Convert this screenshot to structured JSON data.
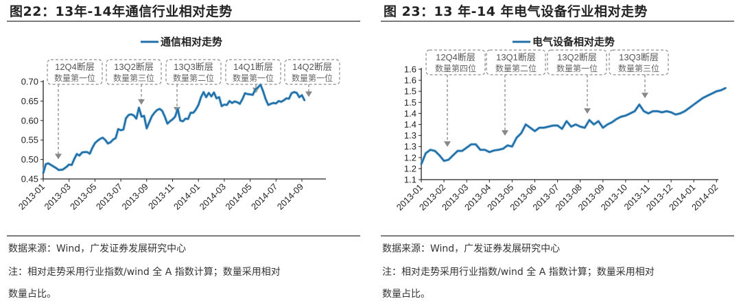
{
  "left": {
    "title": "图22：13年-14年通信行业相对走势",
    "source": "数据来源：Wind，广发证券发展研究中心",
    "note_line1": "注：相对走势采用行业指数/wind 全 A 指数计算；数量采用相对",
    "note_line2": "数量占比。"
  },
  "right": {
    "title": "图 23：13 年-14 年电气设备行业相对走势",
    "source": "数据来源：Wind，广发证券发展研究中心",
    "note_line1": "注：相对走势采用行业指数/wind 全 A 指数计算；数量采用相对",
    "note_line2": "数量占比。"
  },
  "colors": {
    "line": "#1f6fa8",
    "annotation": "#8a8a8a",
    "axis": "#222222"
  },
  "chart_data": [
    {
      "type": "line",
      "title": "图22：13年-14年通信行业相对走势",
      "legend": [
        "通信相对走势"
      ],
      "legend_position": "top",
      "xlabel": "",
      "ylabel": "",
      "ylim": [
        0.45,
        0.7
      ],
      "yticks": [
        "0.45",
        "0.50",
        "0.55",
        "0.60",
        "0.65",
        "0.70"
      ],
      "xticks": [
        "2013-01",
        "2013-03",
        "2013-05",
        "2013-07",
        "2013-09",
        "2013-11",
        "2014-01",
        "2014-03",
        "2014-05",
        "2014-07",
        "2014-09"
      ],
      "grid": false,
      "annotations": [
        {
          "line1": "12Q4断层",
          "line2": "数量第一位",
          "x": "2013-02",
          "y": 0.49
        },
        {
          "line1": "13Q2断层",
          "line2": "数量第三位",
          "x": "2013-08",
          "y": 0.63
        },
        {
          "line1": "13Q3断层",
          "line2": "数量第二位",
          "x": "2013-11",
          "y": 0.61
        },
        {
          "line1": "14Q1断层",
          "line2": "数量第一位",
          "x": "2014-05",
          "y": 0.66
        },
        {
          "line1": "14Q2断层",
          "line2": "数量第一位",
          "x": "2014-09",
          "y": 0.65
        }
      ],
      "series": [
        {
          "name": "通信相对走势",
          "x_month_offset": [
            0,
            0.2,
            0.4,
            0.7,
            1.0,
            1.2,
            1.5,
            1.8,
            2.0,
            2.2,
            2.4,
            2.6,
            2.8,
            3.0,
            3.2,
            3.4,
            3.6,
            3.8,
            4.0,
            4.2,
            4.4,
            4.6,
            4.8,
            5.0,
            5.2,
            5.4,
            5.6,
            5.8,
            6.0,
            6.2,
            6.4,
            6.6,
            6.8,
            7.0,
            7.2,
            7.4,
            7.6,
            7.8,
            8.0,
            8.2,
            8.4,
            8.6,
            8.8,
            9.0,
            9.2,
            9.4,
            9.6,
            9.8,
            10.0,
            10.2,
            10.4,
            10.6,
            10.8,
            11.0,
            11.2,
            11.4,
            11.6,
            11.8,
            12.0,
            12.2,
            12.4,
            12.6,
            12.8,
            13.0,
            13.2,
            13.4,
            13.6,
            13.8,
            14.0,
            14.2,
            14.4,
            14.6,
            14.8,
            15.0,
            15.2,
            15.4,
            15.6,
            15.8,
            16.0,
            16.2,
            16.4,
            16.6,
            16.8,
            17.0,
            17.2,
            17.4,
            17.6,
            17.8,
            18.0,
            18.2,
            18.4,
            18.6,
            18.8,
            19.0,
            19.2,
            19.4,
            19.6,
            19.8,
            20.0,
            20.2,
            20.4,
            20.6,
            20.8,
            21.0,
            21.2,
            21.4,
            21.6,
            21.8,
            22.0,
            22.2
          ],
          "values": [
            0.465,
            0.488,
            0.49,
            0.484,
            0.478,
            0.473,
            0.474,
            0.481,
            0.487,
            0.486,
            0.501,
            0.514,
            0.51,
            0.518,
            0.519,
            0.519,
            0.515,
            0.53,
            0.542,
            0.548,
            0.553,
            0.556,
            0.55,
            0.541,
            0.544,
            0.551,
            0.555,
            0.578,
            0.575,
            0.577,
            0.606,
            0.614,
            0.616,
            0.613,
            0.605,
            0.633,
            0.61,
            0.612,
            0.58,
            0.596,
            0.611,
            0.62,
            0.627,
            0.63,
            0.625,
            0.61,
            0.592,
            0.598,
            0.603,
            0.61,
            0.63,
            0.6,
            0.598,
            0.605,
            0.604,
            0.62,
            0.62,
            0.628,
            0.64,
            0.66,
            0.673,
            0.66,
            0.671,
            0.662,
            0.672,
            0.657,
            0.66,
            0.637,
            0.641,
            0.64,
            0.65,
            0.645,
            0.649,
            0.647,
            0.643,
            0.655,
            0.67,
            0.668,
            0.667,
            0.666,
            0.68,
            0.685,
            0.692,
            0.675,
            0.655,
            0.64,
            0.643,
            0.645,
            0.644,
            0.65,
            0.648,
            0.652,
            0.657,
            0.656,
            0.67,
            0.673,
            0.671,
            0.66,
            0.665,
            0.652
          ]
        }
      ]
    },
    {
      "type": "line",
      "title": "图 23：13 年-14 年电气设备行业相对走势",
      "legend": [
        "电气设备相对走势"
      ],
      "legend_position": "top",
      "xlabel": "",
      "ylabel": "",
      "ylim": [
        1.1,
        1.6
      ],
      "yticks": [
        "1.1",
        "1.2",
        "1.2",
        "1.3",
        "1.3",
        "1.4",
        "1.4",
        "1.5",
        "1.5",
        "1.6",
        "1.6"
      ],
      "xticks": [
        "2013-01",
        "2013-02",
        "2013-03",
        "2013-04",
        "2013-05",
        "2013-06",
        "2013-07",
        "2013-08",
        "2013-09",
        "2013-10",
        "2013-11",
        "2013-12",
        "2014-01",
        "2014-02"
      ],
      "grid": false,
      "annotations": [
        {
          "line1": "12Q4断层",
          "line2": "数量第四位",
          "x": "2013-02",
          "y": 1.23
        },
        {
          "line1": "13Q1断层",
          "line2": "数量第二位",
          "x": "2013-05",
          "y": 1.28
        },
        {
          "line1": "13Q2断层",
          "line2": "数量第一位",
          "x": "2013-08",
          "y": 1.38
        },
        {
          "line1": "13Q3断层",
          "line2": "数量第三位",
          "x": "2013-11",
          "y": 1.45
        }
      ],
      "series": [
        {
          "name": "电气设备相对走势",
          "x_month_offset": [
            0,
            0.2,
            0.4,
            0.6,
            0.8,
            1.0,
            1.2,
            1.4,
            1.6,
            1.8,
            2.0,
            2.2,
            2.4,
            2.6,
            2.8,
            3.0,
            3.2,
            3.4,
            3.6,
            3.8,
            4.0,
            4.2,
            4.4,
            4.6,
            4.8,
            5.0,
            5.2,
            5.4,
            5.6,
            5.8,
            6.0,
            6.2,
            6.4,
            6.6,
            6.8,
            7.0,
            7.2,
            7.4,
            7.6,
            7.8,
            8.0,
            8.2,
            8.4,
            8.6,
            8.8,
            9.0,
            9.2,
            9.4,
            9.6,
            9.8,
            10.0,
            10.2,
            10.4,
            10.6,
            10.8,
            11.0,
            11.2,
            11.4,
            11.6,
            11.8,
            12.0,
            12.2,
            12.4,
            12.6,
            12.8,
            13.0,
            13.2,
            13.4
          ],
          "values": [
            1.17,
            1.22,
            1.235,
            1.23,
            1.21,
            1.185,
            1.19,
            1.21,
            1.23,
            1.23,
            1.245,
            1.26,
            1.26,
            1.235,
            1.235,
            1.225,
            1.232,
            1.235,
            1.24,
            1.255,
            1.25,
            1.29,
            1.31,
            1.35,
            1.335,
            1.32,
            1.335,
            1.335,
            1.34,
            1.345,
            1.345,
            1.33,
            1.365,
            1.34,
            1.35,
            1.34,
            1.335,
            1.37,
            1.35,
            1.365,
            1.335,
            1.35,
            1.36,
            1.375,
            1.385,
            1.39,
            1.4,
            1.41,
            1.44,
            1.41,
            1.4,
            1.41,
            1.41,
            1.405,
            1.41,
            1.405,
            1.395,
            1.4,
            1.41,
            1.425,
            1.44,
            1.455,
            1.47,
            1.48,
            1.49,
            1.5,
            1.505,
            1.515
          ]
        }
      ]
    }
  ]
}
